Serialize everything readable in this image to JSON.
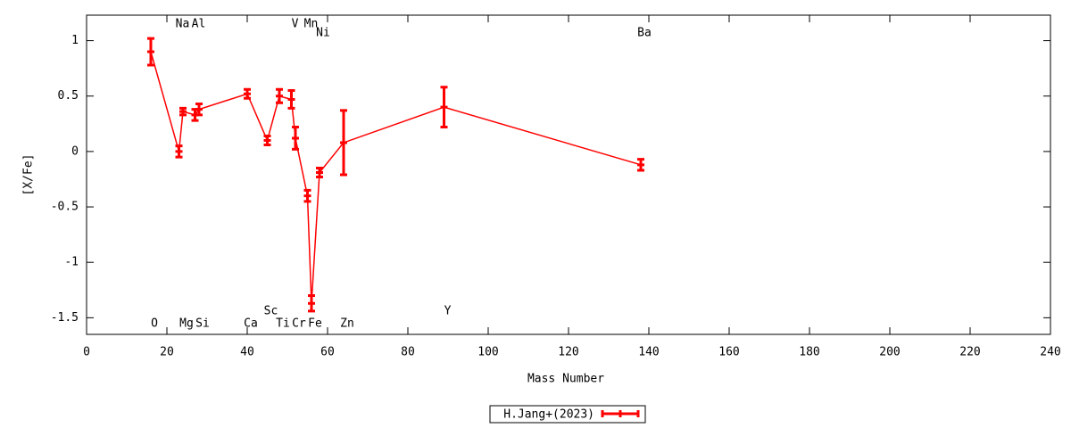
{
  "chart_data": {
    "type": "errorbar-line",
    "x_label": "Mass Number",
    "y_label": "[X/Fe]",
    "x": [
      16,
      23,
      24,
      27,
      28,
      40,
      45,
      48,
      51,
      52,
      55,
      56,
      58,
      64,
      89,
      138
    ],
    "labels": [
      "O",
      "Na",
      "Mg",
      "Al",
      "Si",
      "Ca",
      "Sc",
      "Ti",
      "V",
      "Cr",
      "Mn",
      "Fe",
      "Ni",
      "Zn",
      "Y",
      "Ba"
    ],
    "series": [
      {
        "name": "H.Jang+(2023)",
        "color": "#ff0000",
        "values": [
          0.9,
          0.0,
          0.36,
          0.33,
          0.38,
          0.52,
          0.1,
          0.5,
          0.47,
          0.12,
          -0.4,
          -1.37,
          -0.19,
          0.08,
          0.4,
          -0.12
        ],
        "errors": [
          0.12,
          0.05,
          0.03,
          0.05,
          0.05,
          0.04,
          0.04,
          0.06,
          0.08,
          0.1,
          0.05,
          0.07,
          0.04,
          0.29,
          0.18,
          0.05
        ]
      }
    ],
    "xlim": [
      0,
      240
    ],
    "xticks": [
      0,
      20,
      40,
      60,
      80,
      100,
      120,
      140,
      160,
      180,
      200,
      220,
      240
    ],
    "ylim": [
      -1.65,
      1.23
    ],
    "yticks": [
      -1.5,
      -1,
      -0.5,
      0,
      0.5,
      1
    ],
    "legend": "bottom-center",
    "grid": false
  }
}
